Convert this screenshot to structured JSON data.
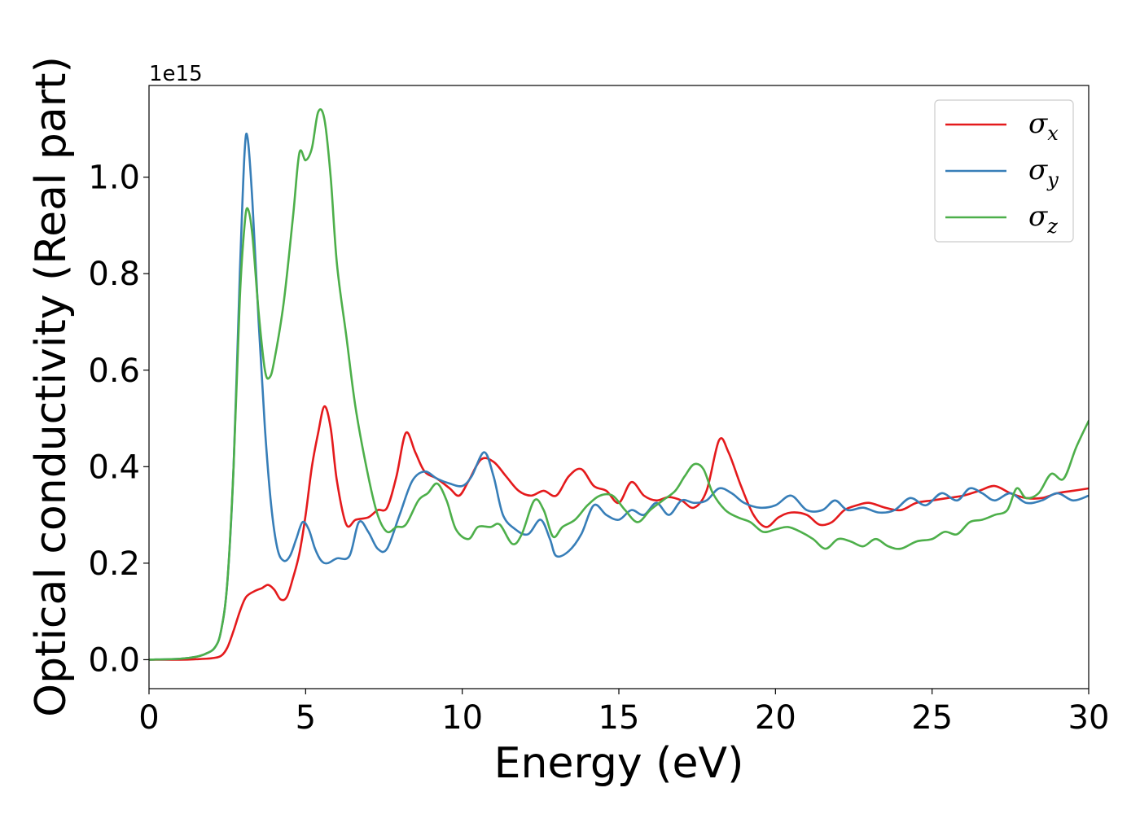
{
  "chart_data": {
    "type": "line",
    "xlabel": "Energy (eV)",
    "ylabel": "Optical conductivity (Real part)",
    "y_offset_label": "1e15",
    "xlim": [
      0,
      30
    ],
    "ylim": [
      -0.06,
      1.19
    ],
    "x_ticks": [
      "0",
      "5",
      "10",
      "15",
      "20",
      "25",
      "30"
    ],
    "y_ticks": [
      "0.0",
      "0.2",
      "0.4",
      "0.6",
      "0.8",
      "1.0"
    ],
    "grid": false,
    "legend_position": "top-right",
    "series": [
      {
        "name": "σx",
        "symbol": "σ",
        "subscript": "x",
        "color": "#e41a1c",
        "points": [
          [
            0,
            0
          ],
          [
            1,
            0
          ],
          [
            1.5,
            0.001
          ],
          [
            2,
            0.003
          ],
          [
            2.3,
            0.008
          ],
          [
            2.5,
            0.025
          ],
          [
            2.7,
            0.06
          ],
          [
            2.9,
            0.1
          ],
          [
            3.1,
            0.13
          ],
          [
            3.4,
            0.143
          ],
          [
            3.6,
            0.148
          ],
          [
            3.8,
            0.155
          ],
          [
            4.0,
            0.145
          ],
          [
            4.2,
            0.125
          ],
          [
            4.4,
            0.13
          ],
          [
            4.6,
            0.17
          ],
          [
            4.8,
            0.22
          ],
          [
            5.0,
            0.3
          ],
          [
            5.2,
            0.4
          ],
          [
            5.4,
            0.47
          ],
          [
            5.6,
            0.525
          ],
          [
            5.8,
            0.48
          ],
          [
            6.0,
            0.37
          ],
          [
            6.3,
            0.28
          ],
          [
            6.6,
            0.29
          ],
          [
            7.0,
            0.295
          ],
          [
            7.3,
            0.31
          ],
          [
            7.6,
            0.315
          ],
          [
            7.9,
            0.38
          ],
          [
            8.2,
            0.47
          ],
          [
            8.5,
            0.43
          ],
          [
            8.8,
            0.39
          ],
          [
            9.2,
            0.375
          ],
          [
            9.6,
            0.355
          ],
          [
            9.9,
            0.34
          ],
          [
            10.2,
            0.37
          ],
          [
            10.6,
            0.415
          ],
          [
            11.0,
            0.41
          ],
          [
            11.4,
            0.38
          ],
          [
            11.8,
            0.35
          ],
          [
            12.2,
            0.34
          ],
          [
            12.6,
            0.35
          ],
          [
            13.0,
            0.34
          ],
          [
            13.4,
            0.38
          ],
          [
            13.8,
            0.395
          ],
          [
            14.2,
            0.36
          ],
          [
            14.6,
            0.35
          ],
          [
            15.0,
            0.325
          ],
          [
            15.4,
            0.368
          ],
          [
            15.8,
            0.34
          ],
          [
            16.2,
            0.33
          ],
          [
            16.6,
            0.337
          ],
          [
            17.0,
            0.33
          ],
          [
            17.4,
            0.315
          ],
          [
            17.8,
            0.35
          ],
          [
            18.2,
            0.455
          ],
          [
            18.5,
            0.43
          ],
          [
            18.9,
            0.36
          ],
          [
            19.3,
            0.3
          ],
          [
            19.7,
            0.275
          ],
          [
            20.1,
            0.295
          ],
          [
            20.5,
            0.305
          ],
          [
            21.0,
            0.3
          ],
          [
            21.4,
            0.28
          ],
          [
            21.8,
            0.285
          ],
          [
            22.2,
            0.31
          ],
          [
            22.6,
            0.32
          ],
          [
            23.0,
            0.325
          ],
          [
            23.5,
            0.315
          ],
          [
            24.0,
            0.31
          ],
          [
            24.5,
            0.325
          ],
          [
            25.0,
            0.33
          ],
          [
            25.5,
            0.335
          ],
          [
            26.0,
            0.34
          ],
          [
            26.5,
            0.35
          ],
          [
            27.0,
            0.36
          ],
          [
            27.5,
            0.345
          ],
          [
            28.0,
            0.335
          ],
          [
            28.5,
            0.335
          ],
          [
            29.0,
            0.345
          ],
          [
            29.5,
            0.35
          ],
          [
            30.0,
            0.355
          ]
        ]
      },
      {
        "name": "σy",
        "symbol": "σ",
        "subscript": "y",
        "color": "#377eb8",
        "points": [
          [
            0,
            0
          ],
          [
            1,
            0.002
          ],
          [
            1.5,
            0.006
          ],
          [
            1.8,
            0.012
          ],
          [
            2.1,
            0.025
          ],
          [
            2.3,
            0.06
          ],
          [
            2.5,
            0.16
          ],
          [
            2.7,
            0.4
          ],
          [
            2.9,
            0.8
          ],
          [
            3.05,
            1.05
          ],
          [
            3.15,
            1.08
          ],
          [
            3.3,
            0.95
          ],
          [
            3.5,
            0.7
          ],
          [
            3.7,
            0.48
          ],
          [
            3.9,
            0.32
          ],
          [
            4.1,
            0.23
          ],
          [
            4.3,
            0.205
          ],
          [
            4.5,
            0.215
          ],
          [
            4.7,
            0.25
          ],
          [
            4.9,
            0.285
          ],
          [
            5.1,
            0.27
          ],
          [
            5.3,
            0.23
          ],
          [
            5.5,
            0.205
          ],
          [
            5.7,
            0.2
          ],
          [
            6.0,
            0.21
          ],
          [
            6.4,
            0.215
          ],
          [
            6.7,
            0.285
          ],
          [
            7.0,
            0.265
          ],
          [
            7.3,
            0.23
          ],
          [
            7.6,
            0.23
          ],
          [
            8.0,
            0.3
          ],
          [
            8.4,
            0.37
          ],
          [
            8.8,
            0.39
          ],
          [
            9.2,
            0.375
          ],
          [
            9.6,
            0.365
          ],
          [
            10.0,
            0.36
          ],
          [
            10.3,
            0.38
          ],
          [
            10.7,
            0.43
          ],
          [
            11.0,
            0.38
          ],
          [
            11.3,
            0.3
          ],
          [
            11.7,
            0.27
          ],
          [
            12.1,
            0.26
          ],
          [
            12.5,
            0.29
          ],
          [
            12.8,
            0.25
          ],
          [
            13.0,
            0.215
          ],
          [
            13.4,
            0.225
          ],
          [
            13.8,
            0.26
          ],
          [
            14.2,
            0.32
          ],
          [
            14.6,
            0.3
          ],
          [
            15.0,
            0.29
          ],
          [
            15.4,
            0.31
          ],
          [
            15.8,
            0.3
          ],
          [
            16.2,
            0.325
          ],
          [
            16.6,
            0.3
          ],
          [
            17.0,
            0.33
          ],
          [
            17.4,
            0.325
          ],
          [
            17.8,
            0.33
          ],
          [
            18.2,
            0.355
          ],
          [
            18.6,
            0.345
          ],
          [
            19.0,
            0.325
          ],
          [
            19.5,
            0.315
          ],
          [
            20.0,
            0.32
          ],
          [
            20.5,
            0.34
          ],
          [
            21.0,
            0.31
          ],
          [
            21.5,
            0.31
          ],
          [
            21.9,
            0.33
          ],
          [
            22.3,
            0.31
          ],
          [
            22.8,
            0.315
          ],
          [
            23.3,
            0.305
          ],
          [
            23.8,
            0.31
          ],
          [
            24.3,
            0.335
          ],
          [
            24.8,
            0.32
          ],
          [
            25.3,
            0.345
          ],
          [
            25.8,
            0.33
          ],
          [
            26.2,
            0.355
          ],
          [
            26.6,
            0.345
          ],
          [
            27.0,
            0.33
          ],
          [
            27.5,
            0.345
          ],
          [
            28.0,
            0.325
          ],
          [
            28.5,
            0.33
          ],
          [
            29.0,
            0.345
          ],
          [
            29.5,
            0.33
          ],
          [
            30.0,
            0.34
          ]
        ]
      },
      {
        "name": "σz",
        "symbol": "σ",
        "subscript": "z",
        "color": "#4daf4a",
        "points": [
          [
            0,
            0
          ],
          [
            1,
            0.002
          ],
          [
            1.5,
            0.006
          ],
          [
            1.8,
            0.012
          ],
          [
            2.1,
            0.025
          ],
          [
            2.3,
            0.06
          ],
          [
            2.5,
            0.16
          ],
          [
            2.7,
            0.4
          ],
          [
            2.9,
            0.75
          ],
          [
            3.05,
            0.9
          ],
          [
            3.15,
            0.935
          ],
          [
            3.3,
            0.88
          ],
          [
            3.5,
            0.72
          ],
          [
            3.7,
            0.6
          ],
          [
            3.85,
            0.585
          ],
          [
            4.0,
            0.62
          ],
          [
            4.3,
            0.74
          ],
          [
            4.6,
            0.92
          ],
          [
            4.8,
            1.05
          ],
          [
            5.0,
            1.035
          ],
          [
            5.2,
            1.06
          ],
          [
            5.4,
            1.135
          ],
          [
            5.6,
            1.12
          ],
          [
            5.8,
            1.0
          ],
          [
            6.0,
            0.82
          ],
          [
            6.3,
            0.67
          ],
          [
            6.6,
            0.52
          ],
          [
            7.0,
            0.38
          ],
          [
            7.3,
            0.3
          ],
          [
            7.6,
            0.265
          ],
          [
            7.9,
            0.275
          ],
          [
            8.2,
            0.28
          ],
          [
            8.6,
            0.33
          ],
          [
            8.9,
            0.345
          ],
          [
            9.2,
            0.365
          ],
          [
            9.5,
            0.33
          ],
          [
            9.8,
            0.27
          ],
          [
            10.2,
            0.25
          ],
          [
            10.5,
            0.275
          ],
          [
            10.9,
            0.275
          ],
          [
            11.2,
            0.28
          ],
          [
            11.6,
            0.24
          ],
          [
            11.9,
            0.26
          ],
          [
            12.3,
            0.33
          ],
          [
            12.6,
            0.31
          ],
          [
            12.9,
            0.255
          ],
          [
            13.2,
            0.275
          ],
          [
            13.6,
            0.29
          ],
          [
            14.0,
            0.32
          ],
          [
            14.4,
            0.34
          ],
          [
            14.8,
            0.34
          ],
          [
            15.2,
            0.31
          ],
          [
            15.6,
            0.285
          ],
          [
            16.0,
            0.31
          ],
          [
            16.4,
            0.33
          ],
          [
            16.8,
            0.35
          ],
          [
            17.1,
            0.38
          ],
          [
            17.4,
            0.405
          ],
          [
            17.7,
            0.395
          ],
          [
            18.0,
            0.345
          ],
          [
            18.4,
            0.31
          ],
          [
            18.8,
            0.295
          ],
          [
            19.2,
            0.285
          ],
          [
            19.6,
            0.265
          ],
          [
            20.0,
            0.27
          ],
          [
            20.4,
            0.275
          ],
          [
            20.8,
            0.265
          ],
          [
            21.2,
            0.25
          ],
          [
            21.6,
            0.23
          ],
          [
            22.0,
            0.25
          ],
          [
            22.4,
            0.245
          ],
          [
            22.8,
            0.235
          ],
          [
            23.2,
            0.25
          ],
          [
            23.6,
            0.235
          ],
          [
            24.0,
            0.23
          ],
          [
            24.5,
            0.245
          ],
          [
            25.0,
            0.25
          ],
          [
            25.4,
            0.265
          ],
          [
            25.8,
            0.26
          ],
          [
            26.2,
            0.285
          ],
          [
            26.6,
            0.29
          ],
          [
            27.0,
            0.3
          ],
          [
            27.4,
            0.31
          ],
          [
            27.7,
            0.355
          ],
          [
            28.0,
            0.335
          ],
          [
            28.4,
            0.345
          ],
          [
            28.8,
            0.385
          ],
          [
            29.2,
            0.375
          ],
          [
            29.6,
            0.44
          ],
          [
            30.0,
            0.495
          ]
        ]
      }
    ]
  }
}
